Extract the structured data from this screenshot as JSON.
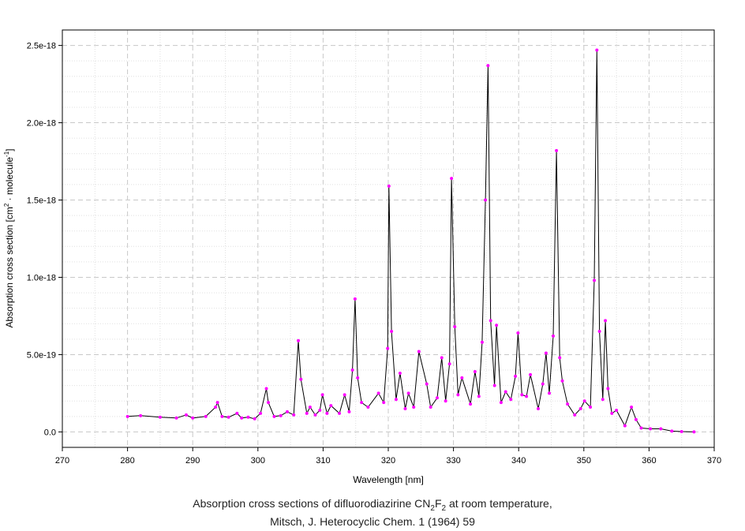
{
  "chart_data": {
    "type": "line",
    "xlabel": "Wavelength [nm]",
    "ylabel": {
      "prefix": "Absorption cross section [cm",
      "sup1": "2",
      "mid": " · molecule",
      "sup2": "-1",
      "suffix": "]"
    },
    "xlim": [
      270,
      370
    ],
    "ylim": [
      -1e-19,
      2.6e-18
    ],
    "xticks": [
      270,
      280,
      290,
      300,
      310,
      320,
      330,
      340,
      350,
      360,
      370
    ],
    "yticks": [
      0,
      5e-19,
      1e-18,
      1.5e-18,
      2e-18,
      2.5e-18
    ],
    "ytick_labels": [
      "0.0",
      "5.0e-19",
      "1.0e-18",
      "1.5e-18",
      "2.0e-18",
      "2.5e-18"
    ],
    "grid": true,
    "line_color": "#000000",
    "marker_color": "#ff00ff",
    "series": [
      {
        "x": [
          280.0,
          282.0,
          285.0,
          287.5,
          289.0,
          290.0,
          292.0,
          293.5,
          293.8,
          294.5,
          295.5,
          296.8,
          297.5,
          298.5,
          299.5,
          300.4,
          301.3,
          301.6,
          302.5,
          303.5,
          304.5,
          305.5,
          306.2,
          306.6,
          307.5,
          308.0,
          308.8,
          309.5,
          309.9,
          310.6,
          311.2,
          312.5,
          313.3,
          314.0,
          314.5,
          314.9,
          315.3,
          315.9,
          316.9,
          318.5,
          319.3,
          319.9,
          320.1,
          320.5,
          321.2,
          321.8,
          322.6,
          323.1,
          323.9,
          324.7,
          325.9,
          326.5,
          327.5,
          328.2,
          328.8,
          329.4,
          329.7,
          330.2,
          330.7,
          331.3,
          332.6,
          333.3,
          333.9,
          334.4,
          334.9,
          335.3,
          335.7,
          336.3,
          336.6,
          337.3,
          338.0,
          338.8,
          339.5,
          339.9,
          340.5,
          341.2,
          341.8,
          343.0,
          343.7,
          344.2,
          344.7,
          345.3,
          345.8,
          346.3,
          346.7,
          347.5,
          348.6,
          349.5,
          350.1,
          351.0,
          351.6,
          352.0,
          352.4,
          352.9,
          353.3,
          353.7,
          354.3,
          355.0,
          356.3,
          357.3,
          358.0,
          358.8,
          360.2,
          361.8,
          363.5,
          365.0,
          366.9
        ],
        "y": [
          1e-19,
          1.05e-19,
          9.5e-20,
          9e-20,
          1.1e-19,
          9e-20,
          1e-19,
          1.6e-19,
          1.9e-19,
          1e-19,
          9.5e-20,
          1.2e-19,
          9e-20,
          9.5e-20,
          8.5e-20,
          1.2e-19,
          2.8e-19,
          1.9e-19,
          1e-19,
          1.05e-19,
          1.3e-19,
          1.1e-19,
          5.9e-19,
          3.4e-19,
          1.2e-19,
          1.6e-19,
          1.1e-19,
          1.4e-19,
          2.4e-19,
          1.2e-19,
          1.7e-19,
          1.2e-19,
          2.4e-19,
          1.3e-19,
          4e-19,
          8.6e-19,
          3.5e-19,
          1.9e-19,
          1.6e-19,
          2.5e-19,
          1.9e-19,
          5.4e-19,
          1.59e-18,
          6.5e-19,
          2.1e-19,
          3.8e-19,
          1.5e-19,
          2.5e-19,
          1.6e-19,
          5.2e-19,
          3.1e-19,
          1.6e-19,
          2.2e-19,
          4.8e-19,
          2e-19,
          4.4e-19,
          1.64e-18,
          6.8e-19,
          2.4e-19,
          3.5e-19,
          1.8e-19,
          3.9e-19,
          2.3e-19,
          5.8e-19,
          1.5e-18,
          2.37e-18,
          7.2e-19,
          3e-19,
          6.9e-19,
          1.9e-19,
          2.6e-19,
          2.1e-19,
          3.6e-19,
          6.4e-19,
          2.4e-19,
          2.3e-19,
          3.7e-19,
          1.5e-19,
          3.1e-19,
          5.1e-19,
          2.5e-19,
          6.2e-19,
          1.82e-18,
          4.8e-19,
          3.3e-19,
          1.8e-19,
          1.1e-19,
          1.5e-19,
          2e-19,
          1.6e-19,
          9.8e-19,
          2.47e-18,
          6.5e-19,
          2.1e-19,
          7.2e-19,
          2.8e-19,
          1.2e-19,
          1.4e-19,
          4e-20,
          1.6e-19,
          8e-20,
          2.5e-20,
          2e-20,
          2e-20,
          5e-21,
          2e-21,
          0.0
        ]
      }
    ]
  },
  "caption": {
    "line1_prefix": "Absorption cross sections of difluorodiazirine CN",
    "sub1": "2",
    "line1_mid": "F",
    "sub2": "2",
    "line1_suffix": " at room temperature,",
    "line2": "Mitsch, J. Heterocyclic Chem. 1 (1964) 59"
  }
}
